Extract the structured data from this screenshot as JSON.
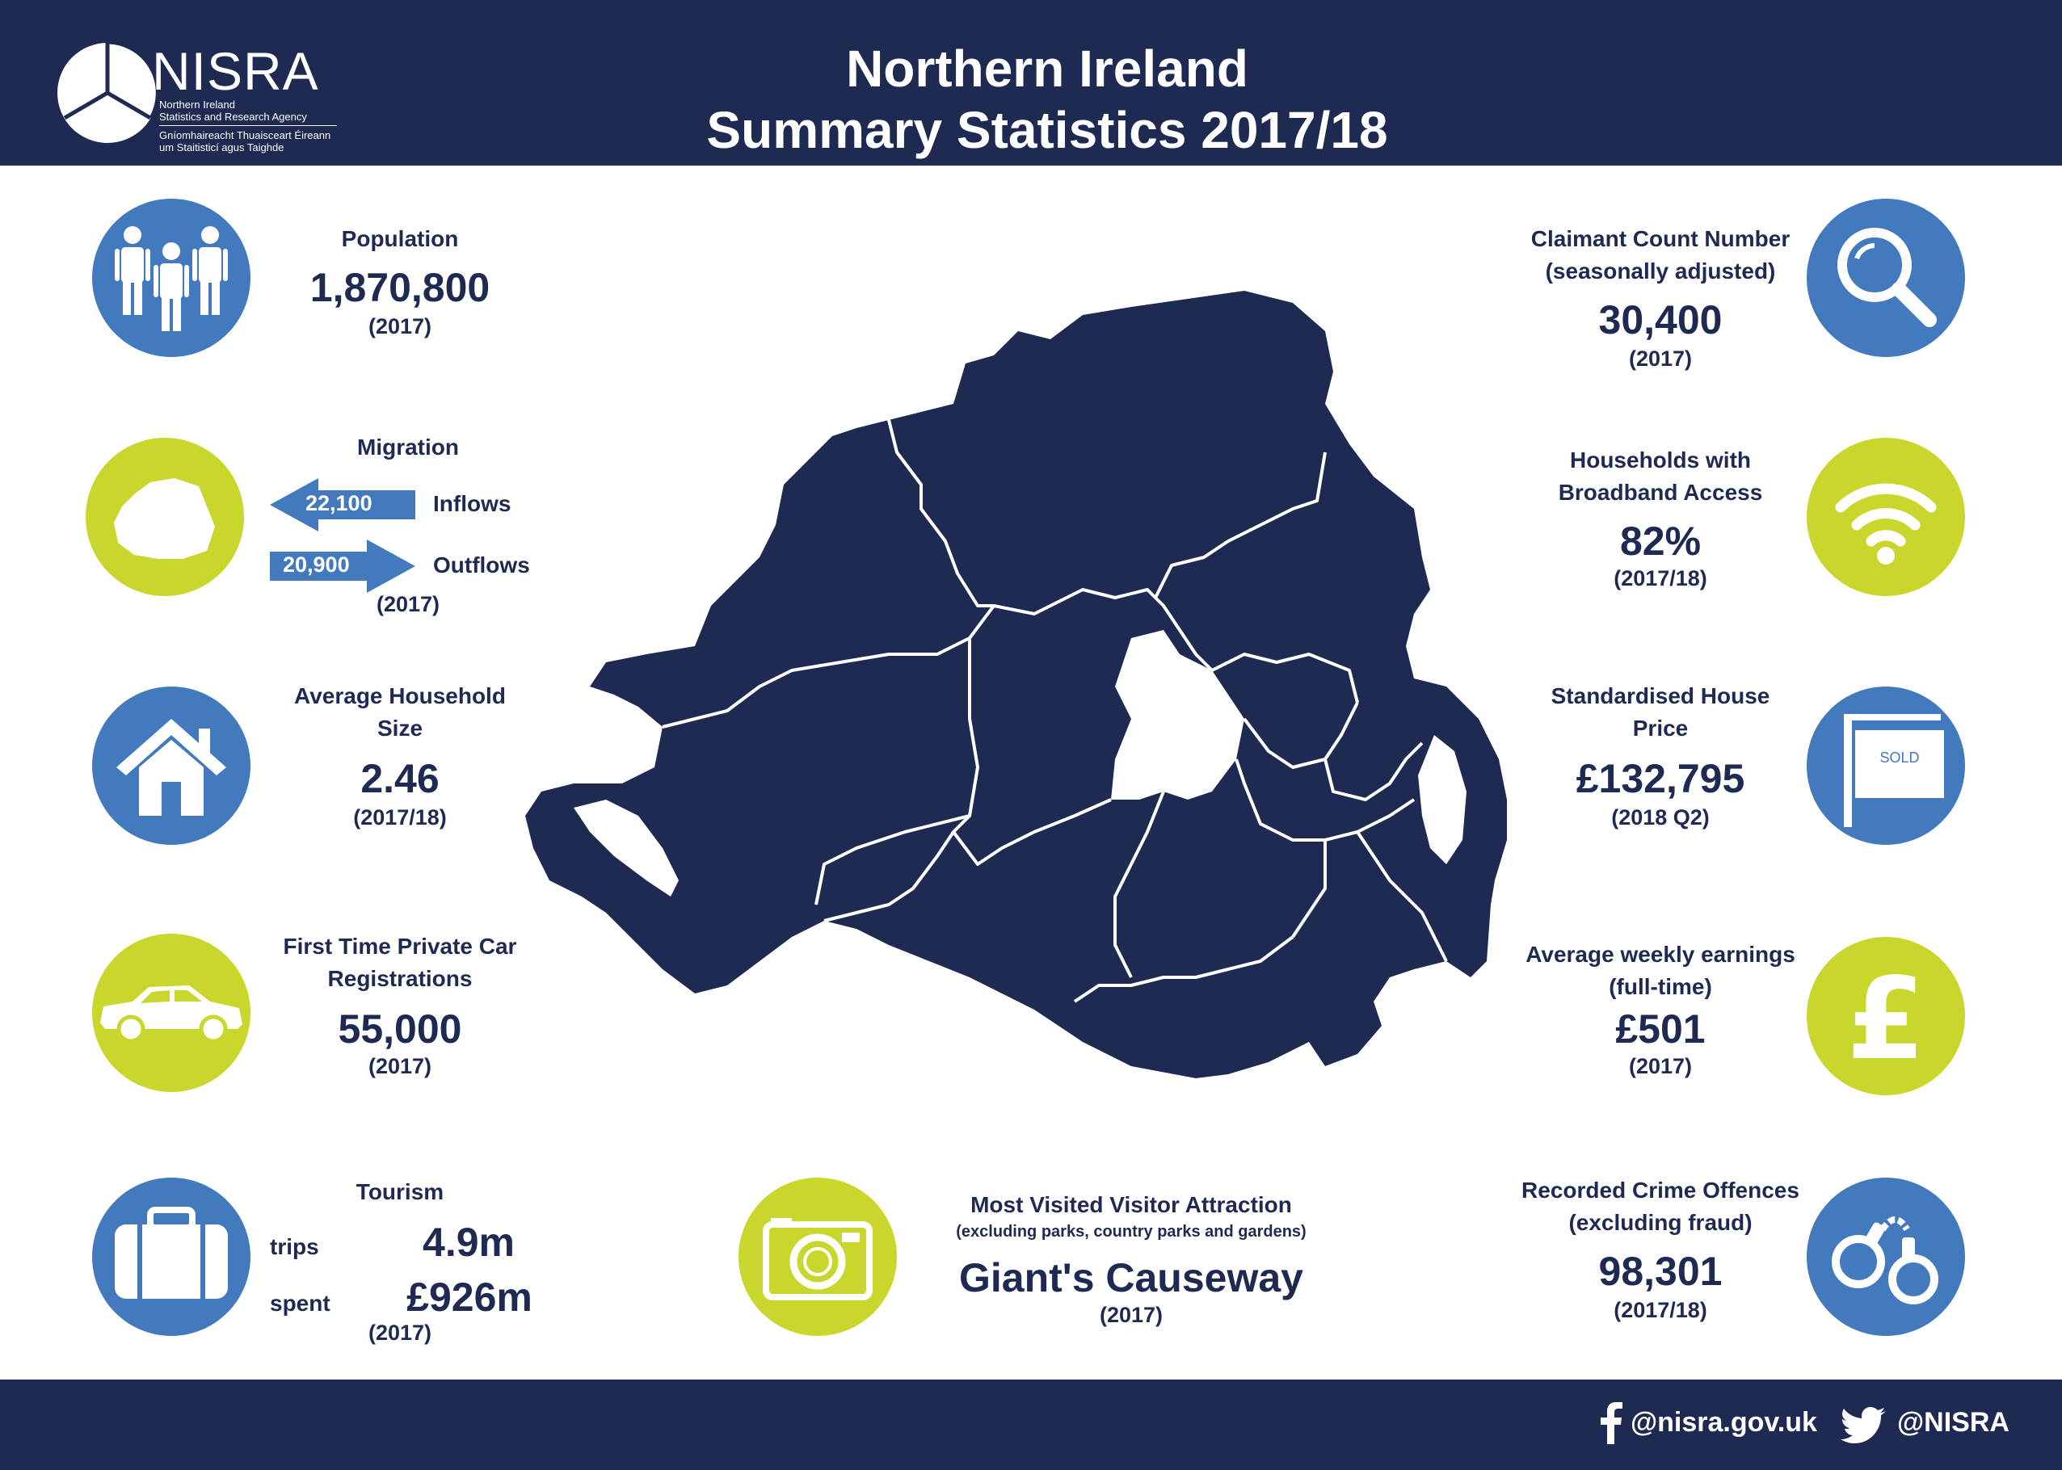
{
  "header": {
    "logo": {
      "wordmark": "NISRA",
      "name_en_line1": "Northern Ireland",
      "name_en_line2": "Statistics and Research Agency",
      "name_ga_line1": "Gníomhaireacht Thuaisceart Éireann",
      "name_ga_line2": "um Staitisticí agus Taighde"
    },
    "title_line1": "Northern Ireland",
    "title_line2": "Summary Statistics 2017/18"
  },
  "stats": {
    "population": {
      "label": "Population",
      "value": "1,870,800",
      "year": "(2017)",
      "icon": "people-icon"
    },
    "migration": {
      "label": "Migration",
      "inflows_value": "22,100",
      "inflows_label": "Inflows",
      "outflows_value": "20,900",
      "outflows_label": "Outflows",
      "year": "(2017)",
      "icon": "ni-map-icon"
    },
    "household_size": {
      "label_line1": "Average Household",
      "label_line2": "Size",
      "value": "2.46",
      "year": "(2017/18)",
      "icon": "house-icon"
    },
    "car_registrations": {
      "label_line1": "First Time Private Car",
      "label_line2": "Registrations",
      "value": "55,000",
      "year": "(2017)",
      "icon": "car-icon"
    },
    "tourism": {
      "label": "Tourism",
      "trips_label": "trips",
      "trips_value": "4.9m",
      "spent_label": "spent",
      "spent_value": "£926m",
      "year": "(2017)",
      "icon": "suitcase-icon"
    },
    "visitor_attraction": {
      "label": "Most Visited Visitor Attraction",
      "sublabel": "(excluding parks, country parks and gardens)",
      "value": "Giant's Causeway",
      "year": "(2017)",
      "icon": "camera-icon"
    },
    "claimant_count": {
      "label_line1": "Claimant Count Number",
      "label_line2": "(seasonally adjusted)",
      "value": "30,400",
      "year": "(2017)",
      "icon": "magnifier-icon"
    },
    "broadband": {
      "label_line1": "Households with",
      "label_line2": "Broadband Access",
      "value": "82%",
      "year": "(2017/18)",
      "icon": "wifi-icon"
    },
    "house_price": {
      "label_line1": "Standardised House",
      "label_line2": "Price",
      "value": "£132,795",
      "year": "(2018 Q2)",
      "sign_text": "SOLD",
      "icon": "sold-sign-icon"
    },
    "weekly_earnings": {
      "label_line1": "Average weekly earnings",
      "label_line2": "(full-time)",
      "value": "£501",
      "year": "(2017)",
      "icon": "pound-icon"
    },
    "crime": {
      "label_line1": "Recorded Crime Offences",
      "label_line2": "(excluding fraud)",
      "value": "98,301",
      "year": "(2017/18)",
      "icon": "handcuffs-icon"
    }
  },
  "footer": {
    "facebook_handle": "@nisra.gov.uk",
    "twitter_handle": "@NISRA"
  },
  "colors": {
    "navy": "#1f2a52",
    "blue": "#4379bd",
    "lime": "#c9d72c",
    "white": "#ffffff"
  }
}
